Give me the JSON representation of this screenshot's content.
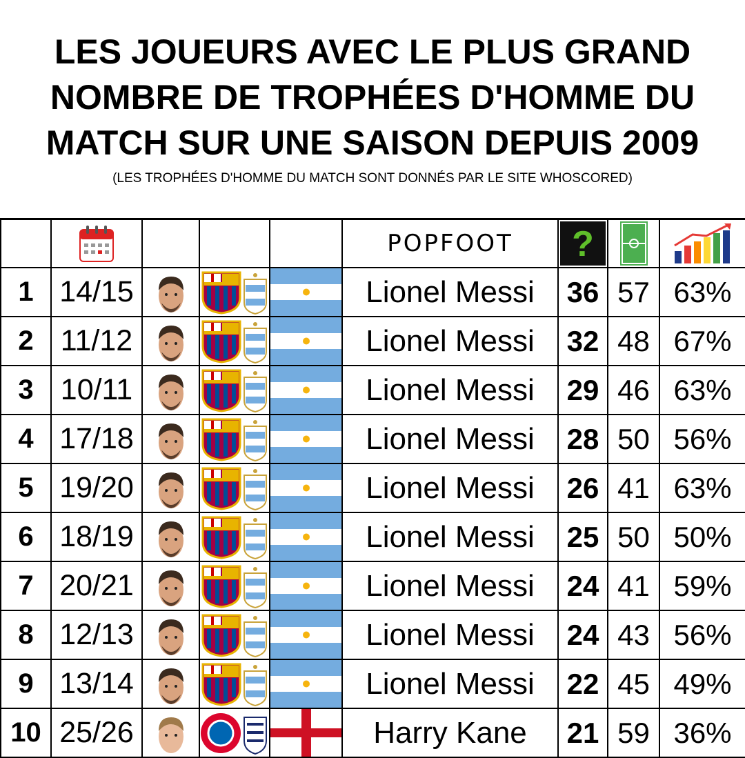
{
  "header": {
    "title_lines": [
      "LES JOUEURS AVEC LE PLUS GRAND",
      "NOMBRE DE TROPHÉES D'HOMME DU",
      "MATCH SUR UNE SAISON DEPUIS 2009"
    ],
    "subtitle": "(LES TROPHÉES D'HOMME DU MATCH SONT DONNÉS PAR LE SITE WHOSCORED)"
  },
  "table": {
    "logo": "POPFOOT",
    "rows": [
      [
        "1",
        "14/15",
        "Lionel Messi",
        "36",
        "57",
        "63%"
      ],
      [
        "2",
        "11/12",
        "Lionel Messi",
        "32",
        "48",
        "67%"
      ],
      [
        "3",
        "10/11",
        "Lionel Messi",
        "29",
        "46",
        "63%"
      ],
      [
        "4",
        "17/18",
        "Lionel Messi",
        "28",
        "50",
        "56%"
      ],
      [
        "5",
        "19/20",
        "Lionel Messi",
        "26",
        "41",
        "63%"
      ],
      [
        "6",
        "18/19",
        "Lionel Messi",
        "25",
        "50",
        "50%"
      ],
      [
        "7",
        "20/21",
        "Lionel Messi",
        "24",
        "41",
        "59%"
      ],
      [
        "8",
        "12/13",
        "Lionel Messi",
        "24",
        "43",
        "56%"
      ],
      [
        "9",
        "13/14",
        "Lionel Messi",
        "22",
        "45",
        "49%"
      ],
      [
        "10",
        "25/26",
        "Harry Kane",
        "21",
        "59",
        "36%"
      ]
    ]
  }
}
